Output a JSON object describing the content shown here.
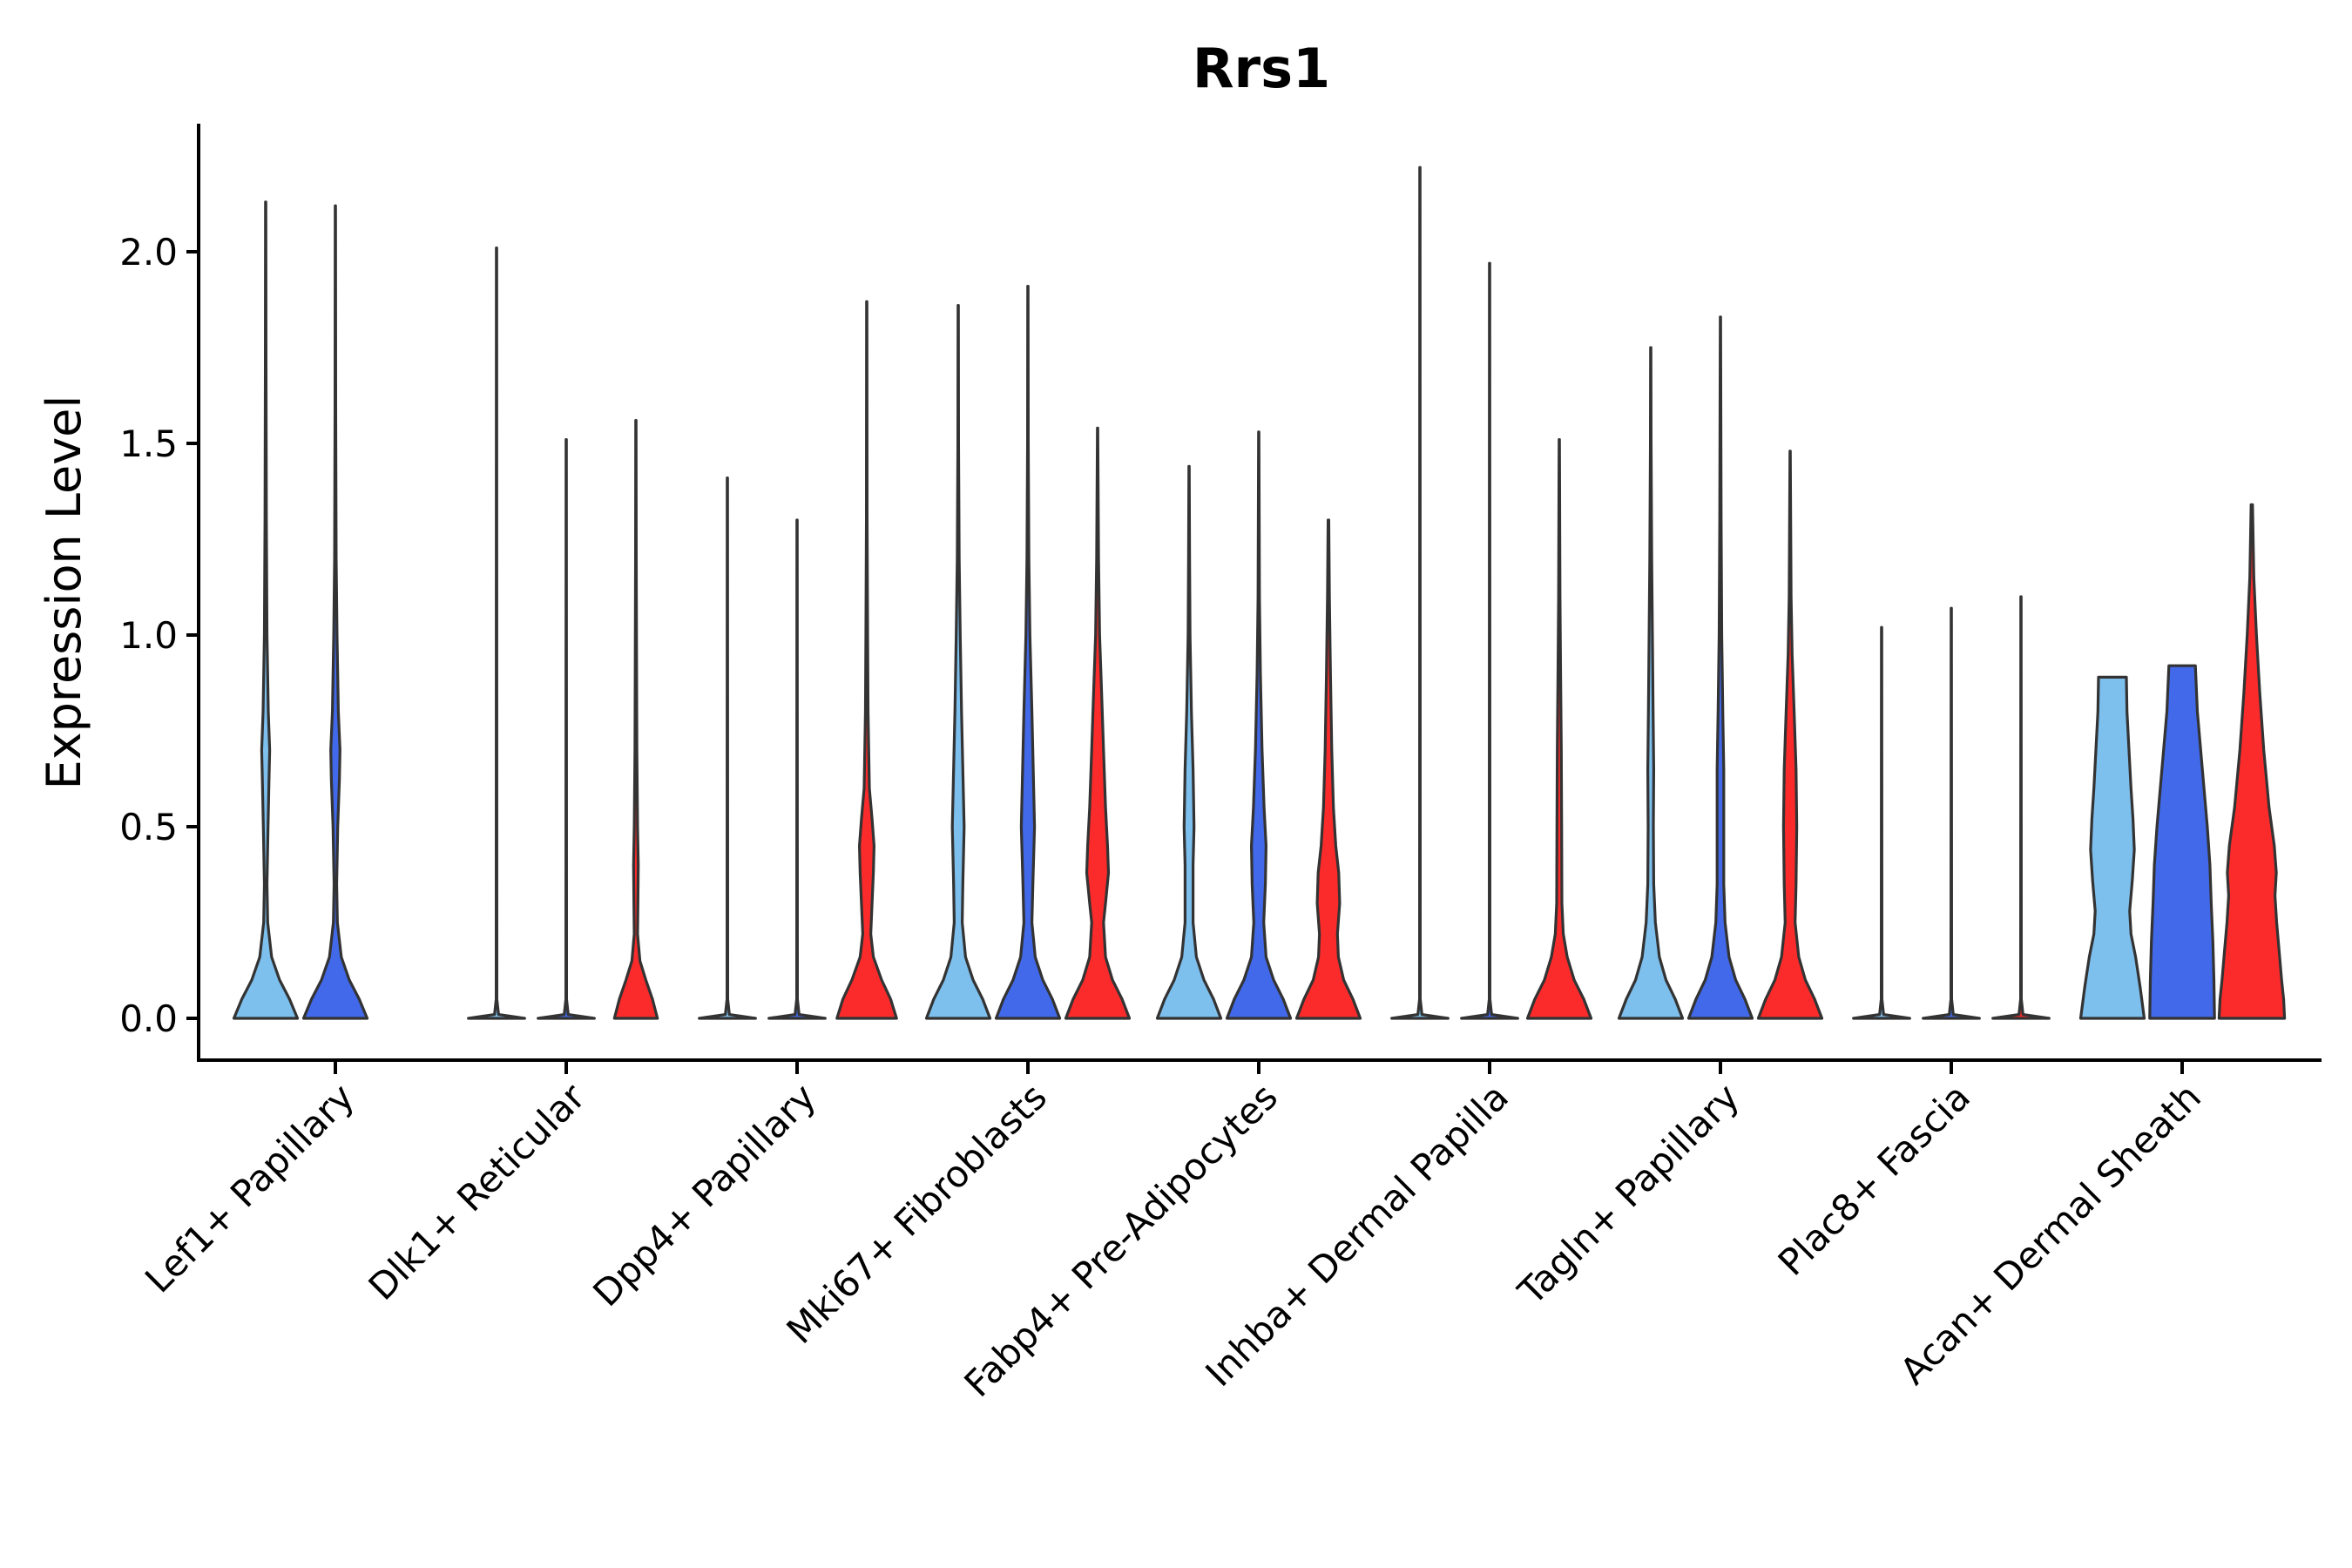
{
  "chart_data": {
    "type": "violin",
    "title": "Rrs1",
    "xlabel": "",
    "ylabel": "Expression Level",
    "ylim": [
      -0.11,
      2.33
    ],
    "yticks": [
      "0.0",
      "0.5",
      "1.0",
      "1.5",
      "2.0"
    ],
    "ytick_values": [
      0,
      0.5,
      1,
      1.5,
      2
    ],
    "grid": false,
    "legend": "none",
    "groups": [
      "g1",
      "g2",
      "g3"
    ],
    "group_colors": [
      "#7dbfed",
      "#4169e9",
      "#fc2b2b"
    ],
    "categories": [
      "Lef1+ Papillary",
      "Dlk1+ Reticular",
      "Dpp4+ Papillary",
      "Mki67+ Fibroblasts",
      "Fabp4+ Pre-Adipocytes",
      "Inhba+ Dermal Papilla",
      "Tagln+ Papillary",
      "Plac8+ Fascia",
      "Acan+ Dermal Sheath"
    ],
    "violins": [
      {
        "category": 0,
        "group": 0,
        "max": 2.13,
        "profile": [
          [
            0,
            0.96
          ],
          [
            0.05,
            0.72
          ],
          [
            0.1,
            0.42
          ],
          [
            0.16,
            0.18
          ],
          [
            0.25,
            0.06
          ],
          [
            0.35,
            0.04
          ],
          [
            0.5,
            0.07
          ],
          [
            0.62,
            0.1
          ],
          [
            0.7,
            0.12
          ],
          [
            0.8,
            0.08
          ],
          [
            1.0,
            0.04
          ],
          [
            1.3,
            0.02
          ],
          [
            1.7,
            0.01
          ],
          [
            2.13,
            0.006
          ]
        ]
      },
      {
        "category": 0,
        "group": 1,
        "max": 2.12,
        "profile": [
          [
            0,
            0.96
          ],
          [
            0.05,
            0.72
          ],
          [
            0.1,
            0.42
          ],
          [
            0.16,
            0.18
          ],
          [
            0.25,
            0.06
          ],
          [
            0.35,
            0.04
          ],
          [
            0.5,
            0.07
          ],
          [
            0.62,
            0.12
          ],
          [
            0.7,
            0.14
          ],
          [
            0.8,
            0.09
          ],
          [
            1.0,
            0.05
          ],
          [
            1.2,
            0.025
          ],
          [
            1.6,
            0.01
          ],
          [
            2.12,
            0.006
          ]
        ]
      },
      {
        "category": 1,
        "group": 0,
        "max": 2.01,
        "profile": [
          [
            0,
            0.85
          ],
          [
            0.01,
            0.06
          ],
          [
            0.05,
            0.01
          ],
          [
            2.01,
            0.006
          ]
        ]
      },
      {
        "category": 1,
        "group": 1,
        "max": 1.51,
        "profile": [
          [
            0,
            0.85
          ],
          [
            0.01,
            0.06
          ],
          [
            0.05,
            0.01
          ],
          [
            1.51,
            0.006
          ]
        ]
      },
      {
        "category": 1,
        "group": 2,
        "max": 1.56,
        "profile": [
          [
            0,
            0.65
          ],
          [
            0.05,
            0.5
          ],
          [
            0.1,
            0.3
          ],
          [
            0.15,
            0.12
          ],
          [
            0.22,
            0.05
          ],
          [
            0.3,
            0.06
          ],
          [
            0.4,
            0.07
          ],
          [
            0.5,
            0.05
          ],
          [
            0.7,
            0.03
          ],
          [
            0.9,
            0.02
          ],
          [
            1.2,
            0.01
          ],
          [
            1.56,
            0.006
          ]
        ]
      },
      {
        "category": 2,
        "group": 0,
        "max": 1.41,
        "profile": [
          [
            0,
            0.85
          ],
          [
            0.01,
            0.06
          ],
          [
            0.05,
            0.01
          ],
          [
            1.41,
            0.006
          ]
        ]
      },
      {
        "category": 2,
        "group": 1,
        "max": 1.3,
        "profile": [
          [
            0,
            0.85
          ],
          [
            0.01,
            0.06
          ],
          [
            0.05,
            0.01
          ],
          [
            1.3,
            0.006
          ]
        ]
      },
      {
        "category": 2,
        "group": 2,
        "max": 1.87,
        "profile": [
          [
            0,
            0.9
          ],
          [
            0.05,
            0.72
          ],
          [
            0.1,
            0.45
          ],
          [
            0.16,
            0.2
          ],
          [
            0.22,
            0.12
          ],
          [
            0.3,
            0.16
          ],
          [
            0.38,
            0.2
          ],
          [
            0.45,
            0.22
          ],
          [
            0.52,
            0.16
          ],
          [
            0.6,
            0.08
          ],
          [
            0.8,
            0.04
          ],
          [
            1.0,
            0.025
          ],
          [
            1.3,
            0.01
          ],
          [
            1.87,
            0.006
          ]
        ]
      },
      {
        "category": 3,
        "group": 0,
        "max": 1.86,
        "profile": [
          [
            0,
            0.96
          ],
          [
            0.05,
            0.74
          ],
          [
            0.1,
            0.45
          ],
          [
            0.16,
            0.22
          ],
          [
            0.25,
            0.12
          ],
          [
            0.35,
            0.14
          ],
          [
            0.5,
            0.18
          ],
          [
            0.65,
            0.14
          ],
          [
            0.8,
            0.1
          ],
          [
            1.0,
            0.06
          ],
          [
            1.2,
            0.03
          ],
          [
            1.5,
            0.01
          ],
          [
            1.86,
            0.006
          ]
        ]
      },
      {
        "category": 3,
        "group": 1,
        "max": 1.91,
        "profile": [
          [
            0,
            0.96
          ],
          [
            0.05,
            0.74
          ],
          [
            0.1,
            0.45
          ],
          [
            0.16,
            0.22
          ],
          [
            0.25,
            0.12
          ],
          [
            0.35,
            0.15
          ],
          [
            0.5,
            0.2
          ],
          [
            0.65,
            0.16
          ],
          [
            0.8,
            0.12
          ],
          [
            1.0,
            0.06
          ],
          [
            1.2,
            0.03
          ],
          [
            1.5,
            0.01
          ],
          [
            1.91,
            0.006
          ]
        ]
      },
      {
        "category": 3,
        "group": 2,
        "max": 1.54,
        "profile": [
          [
            0,
            0.96
          ],
          [
            0.05,
            0.74
          ],
          [
            0.1,
            0.45
          ],
          [
            0.16,
            0.24
          ],
          [
            0.25,
            0.18
          ],
          [
            0.3,
            0.24
          ],
          [
            0.38,
            0.33
          ],
          [
            0.45,
            0.3
          ],
          [
            0.55,
            0.24
          ],
          [
            0.7,
            0.18
          ],
          [
            0.85,
            0.12
          ],
          [
            1.0,
            0.06
          ],
          [
            1.2,
            0.03
          ],
          [
            1.54,
            0.006
          ]
        ]
      },
      {
        "category": 4,
        "group": 0,
        "max": 1.44,
        "profile": [
          [
            0,
            0.96
          ],
          [
            0.05,
            0.74
          ],
          [
            0.1,
            0.45
          ],
          [
            0.16,
            0.22
          ],
          [
            0.25,
            0.12
          ],
          [
            0.4,
            0.12
          ],
          [
            0.5,
            0.15
          ],
          [
            0.65,
            0.12
          ],
          [
            0.8,
            0.07
          ],
          [
            1.0,
            0.03
          ],
          [
            1.2,
            0.015
          ],
          [
            1.44,
            0.006
          ]
        ]
      },
      {
        "category": 4,
        "group": 1,
        "max": 1.53,
        "profile": [
          [
            0,
            0.96
          ],
          [
            0.05,
            0.74
          ],
          [
            0.1,
            0.45
          ],
          [
            0.16,
            0.22
          ],
          [
            0.25,
            0.15
          ],
          [
            0.35,
            0.2
          ],
          [
            0.45,
            0.22
          ],
          [
            0.55,
            0.16
          ],
          [
            0.7,
            0.1
          ],
          [
            0.9,
            0.05
          ],
          [
            1.1,
            0.02
          ],
          [
            1.53,
            0.006
          ]
        ]
      },
      {
        "category": 4,
        "group": 2,
        "max": 1.3,
        "profile": [
          [
            0,
            0.96
          ],
          [
            0.05,
            0.74
          ],
          [
            0.1,
            0.46
          ],
          [
            0.16,
            0.3
          ],
          [
            0.22,
            0.27
          ],
          [
            0.3,
            0.34
          ],
          [
            0.38,
            0.31
          ],
          [
            0.45,
            0.22
          ],
          [
            0.55,
            0.15
          ],
          [
            0.7,
            0.1
          ],
          [
            0.9,
            0.06
          ],
          [
            1.1,
            0.03
          ],
          [
            1.3,
            0.01
          ]
        ]
      },
      {
        "category": 5,
        "group": 0,
        "max": 2.22,
        "profile": [
          [
            0,
            0.85
          ],
          [
            0.01,
            0.06
          ],
          [
            0.05,
            0.01
          ],
          [
            2.22,
            0.006
          ]
        ]
      },
      {
        "category": 5,
        "group": 1,
        "max": 1.97,
        "profile": [
          [
            0,
            0.85
          ],
          [
            0.01,
            0.06
          ],
          [
            0.05,
            0.01
          ],
          [
            1.97,
            0.006
          ]
        ]
      },
      {
        "category": 5,
        "group": 2,
        "max": 1.51,
        "profile": [
          [
            0,
            0.96
          ],
          [
            0.05,
            0.74
          ],
          [
            0.1,
            0.45
          ],
          [
            0.16,
            0.24
          ],
          [
            0.22,
            0.12
          ],
          [
            0.3,
            0.08
          ],
          [
            0.5,
            0.07
          ],
          [
            0.7,
            0.06
          ],
          [
            0.9,
            0.04
          ],
          [
            1.1,
            0.02
          ],
          [
            1.51,
            0.006
          ]
        ]
      },
      {
        "category": 6,
        "group": 0,
        "max": 1.75,
        "profile": [
          [
            0,
            0.96
          ],
          [
            0.05,
            0.74
          ],
          [
            0.1,
            0.46
          ],
          [
            0.16,
            0.26
          ],
          [
            0.25,
            0.14
          ],
          [
            0.35,
            0.09
          ],
          [
            0.5,
            0.08
          ],
          [
            0.65,
            0.09
          ],
          [
            0.8,
            0.07
          ],
          [
            1.0,
            0.05
          ],
          [
            1.2,
            0.03
          ],
          [
            1.5,
            0.01
          ],
          [
            1.75,
            0.006
          ]
        ]
      },
      {
        "category": 6,
        "group": 1,
        "max": 1.83,
        "profile": [
          [
            0,
            0.96
          ],
          [
            0.05,
            0.74
          ],
          [
            0.1,
            0.46
          ],
          [
            0.16,
            0.26
          ],
          [
            0.25,
            0.14
          ],
          [
            0.35,
            0.1
          ],
          [
            0.5,
            0.1
          ],
          [
            0.65,
            0.1
          ],
          [
            0.8,
            0.07
          ],
          [
            1.0,
            0.04
          ],
          [
            1.3,
            0.02
          ],
          [
            1.83,
            0.006
          ]
        ]
      },
      {
        "category": 6,
        "group": 2,
        "max": 1.48,
        "profile": [
          [
            0,
            0.96
          ],
          [
            0.05,
            0.74
          ],
          [
            0.1,
            0.46
          ],
          [
            0.16,
            0.26
          ],
          [
            0.25,
            0.15
          ],
          [
            0.35,
            0.18
          ],
          [
            0.5,
            0.2
          ],
          [
            0.65,
            0.18
          ],
          [
            0.8,
            0.12
          ],
          [
            0.95,
            0.06
          ],
          [
            1.1,
            0.03
          ],
          [
            1.48,
            0.006
          ]
        ]
      },
      {
        "category": 7,
        "group": 0,
        "max": 1.02,
        "profile": [
          [
            0,
            0.85
          ],
          [
            0.01,
            0.06
          ],
          [
            0.05,
            0.01
          ],
          [
            1.02,
            0.006
          ]
        ]
      },
      {
        "category": 7,
        "group": 1,
        "max": 1.07,
        "profile": [
          [
            0,
            0.85
          ],
          [
            0.01,
            0.06
          ],
          [
            0.05,
            0.01
          ],
          [
            1.07,
            0.006
          ]
        ]
      },
      {
        "category": 7,
        "group": 2,
        "max": 1.1,
        "profile": [
          [
            0,
            0.85
          ],
          [
            0.01,
            0.06
          ],
          [
            0.05,
            0.01
          ],
          [
            1.1,
            0.006
          ]
        ]
      },
      {
        "category": 8,
        "group": 0,
        "max": 0.89,
        "profile": [
          [
            0,
            0.96
          ],
          [
            0.08,
            0.84
          ],
          [
            0.16,
            0.7
          ],
          [
            0.22,
            0.56
          ],
          [
            0.28,
            0.52
          ],
          [
            0.36,
            0.6
          ],
          [
            0.44,
            0.66
          ],
          [
            0.52,
            0.62
          ],
          [
            0.6,
            0.56
          ],
          [
            0.7,
            0.5
          ],
          [
            0.8,
            0.44
          ],
          [
            0.89,
            0.42
          ]
        ]
      },
      {
        "category": 8,
        "group": 1,
        "max": 0.92,
        "profile": [
          [
            0,
            0.98
          ],
          [
            0.1,
            0.96
          ],
          [
            0.2,
            0.93
          ],
          [
            0.3,
            0.88
          ],
          [
            0.4,
            0.84
          ],
          [
            0.5,
            0.76
          ],
          [
            0.6,
            0.66
          ],
          [
            0.7,
            0.56
          ],
          [
            0.8,
            0.46
          ],
          [
            0.92,
            0.4
          ]
        ]
      },
      {
        "category": 8,
        "group": 2,
        "max": 1.34,
        "profile": [
          [
            0,
            0.99
          ],
          [
            0.05,
            0.96
          ],
          [
            0.1,
            0.9
          ],
          [
            0.18,
            0.82
          ],
          [
            0.25,
            0.75
          ],
          [
            0.32,
            0.7
          ],
          [
            0.38,
            0.74
          ],
          [
            0.45,
            0.68
          ],
          [
            0.55,
            0.52
          ],
          [
            0.7,
            0.36
          ],
          [
            0.85,
            0.24
          ],
          [
            1.0,
            0.14
          ],
          [
            1.15,
            0.06
          ],
          [
            1.34,
            0.02
          ]
        ]
      }
    ]
  }
}
